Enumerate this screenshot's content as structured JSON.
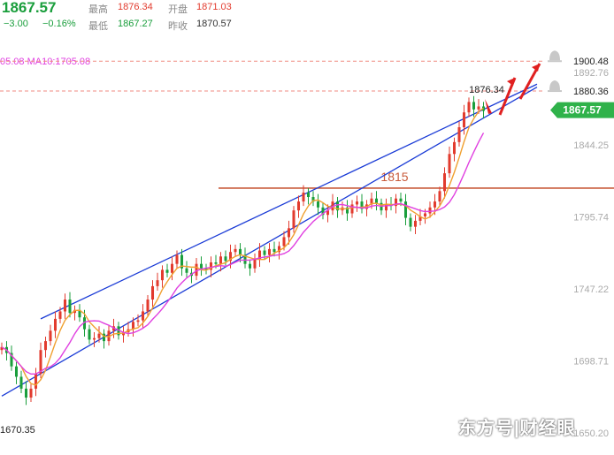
{
  "header": {
    "price": "1867.57",
    "change": "−3.00",
    "change_pct": "−0.16%",
    "high_label": "最高",
    "high_value": "1876.34",
    "open_label": "开盘",
    "open_value": "1871.03",
    "low_label": "最低",
    "low_value": "1867.27",
    "prev_close_label": "昨收",
    "prev_close_value": "1870.57"
  },
  "ma_legend": "05.08  MA10:1705.08",
  "watermark": "东方号|财经眼",
  "colors": {
    "up": "#e23b2e",
    "down": "#1a9e3c",
    "ma10": "#e040e0",
    "ma5": "#f0a030",
    "channel": "#1a3bd6",
    "support": "#c85a3a",
    "price_tag": "#2fb24a"
  },
  "chart_data": {
    "type": "candlestick",
    "ylim": [
      1650.2,
      1903
    ],
    "y_ticks": [
      "1892.76",
      "1844.25",
      "1795.74",
      "1747.22",
      "1698.71",
      "1650.20"
    ],
    "bottom_left_label": "1670.35",
    "high_marker": "1876.34",
    "last_price_tag": "1867.57",
    "alert_levels": [
      {
        "value": 1900.48,
        "label": "1900.48"
      },
      {
        "value": 1880.36,
        "label": "1880.36"
      }
    ],
    "support_line": {
      "value": 1815,
      "label": "1815"
    },
    "channel": {
      "upper": [
        [
          8,
          1727
        ],
        [
          110,
          1885
        ]
      ],
      "lower": [
        [
          0,
          1675
        ],
        [
          110,
          1883
        ]
      ]
    },
    "closes": [
      1708,
      1704,
      1695,
      1688,
      1680,
      1674,
      1680,
      1690,
      1706,
      1712,
      1719,
      1727,
      1732,
      1740,
      1731,
      1733,
      1728,
      1720,
      1713,
      1714,
      1717,
      1712,
      1719,
      1722,
      1716,
      1718,
      1720,
      1725,
      1726,
      1732,
      1740,
      1749,
      1753,
      1760,
      1758,
      1764,
      1770,
      1761,
      1758,
      1756,
      1764,
      1761,
      1760,
      1765,
      1764,
      1769,
      1766,
      1772,
      1774,
      1770,
      1764,
      1761,
      1767,
      1773,
      1770,
      1774,
      1772,
      1776,
      1782,
      1788,
      1800,
      1806,
      1812,
      1809,
      1806,
      1802,
      1797,
      1800,
      1806,
      1800,
      1802,
      1798,
      1804,
      1806,
      1801,
      1804,
      1808,
      1805,
      1800,
      1804,
      1803,
      1808,
      1806,
      1795,
      1789,
      1793,
      1796,
      1798,
      1802,
      1806,
      1813,
      1825,
      1838,
      1846,
      1856,
      1866,
      1873,
      1868,
      1870,
      1867
    ]
  }
}
